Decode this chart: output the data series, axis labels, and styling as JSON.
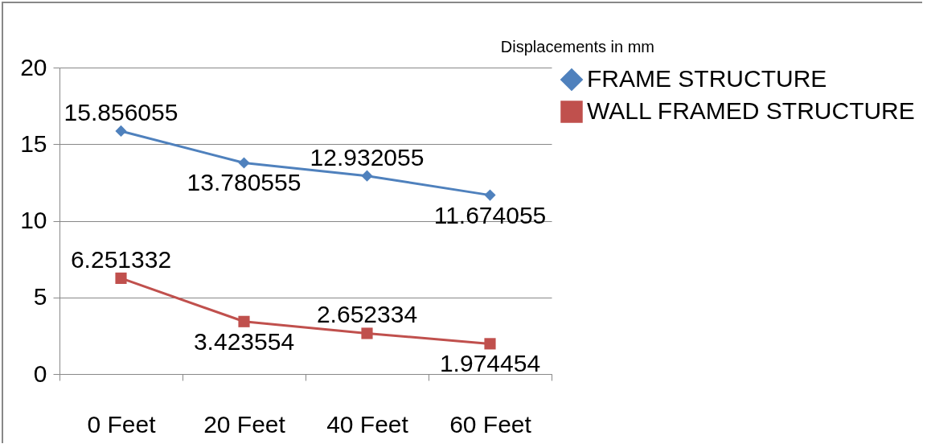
{
  "chart_data": {
    "type": "line",
    "categories": [
      "0 Feet",
      "20 Feet",
      "40 Feet",
      "60 Feet"
    ],
    "series": [
      {
        "name": "FRAME STRUCTURE",
        "color": "#4f81bd",
        "marker": "diamond",
        "values": [
          15.856055,
          13.780555,
          12.932055,
          11.674055
        ]
      },
      {
        "name": "WALL FRAMED STRUCTURE",
        "color": "#c0504d",
        "marker": "square",
        "values": [
          6.251332,
          3.423554,
          2.652334,
          1.974454
        ]
      }
    ],
    "ylim": [
      0,
      20
    ],
    "yticks": [
      0,
      5,
      10,
      15,
      20
    ],
    "grid": "y",
    "legend": "right",
    "data_labels": true,
    "annotations": [
      "Displacements in mm"
    ]
  }
}
